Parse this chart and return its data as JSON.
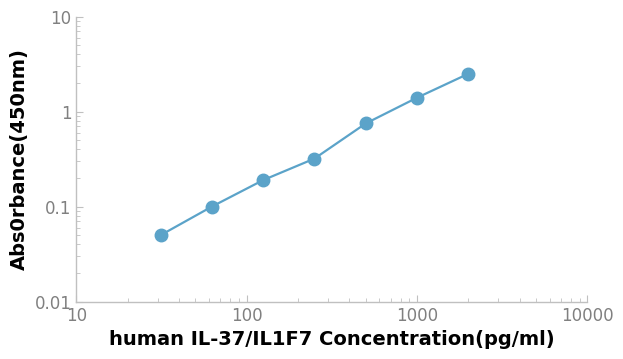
{
  "x": [
    31.25,
    62.5,
    125,
    250,
    500,
    1000,
    2000
  ],
  "y": [
    0.05,
    0.1,
    0.19,
    0.32,
    0.75,
    1.4,
    2.5
  ],
  "line_color": "#5ba3c9",
  "marker_color": "#5ba3c9",
  "marker_size": 9,
  "line_width": 1.6,
  "xlabel": "human IL-37/IL1F7 Concentration(pg/ml)",
  "ylabel": "Abs0rbance(450nm)",
  "xlim": [
    10,
    10000
  ],
  "ylim": [
    0.01,
    10
  ],
  "xtick_labels": [
    "10",
    "100",
    "1000",
    "10000"
  ],
  "xtick_vals": [
    10,
    100,
    1000,
    10000
  ],
  "ytick_labels": [
    "0.01",
    "0.1",
    "1",
    "10"
  ],
  "ytick_vals": [
    0.01,
    0.1,
    1,
    10
  ],
  "xlabel_fontsize": 14,
  "ylabel_fontsize": 14,
  "tick_fontsize": 12,
  "tick_color": "#808080",
  "spine_color": "#c0c0c0",
  "background_color": "#ffffff",
  "label_color": "#606060"
}
